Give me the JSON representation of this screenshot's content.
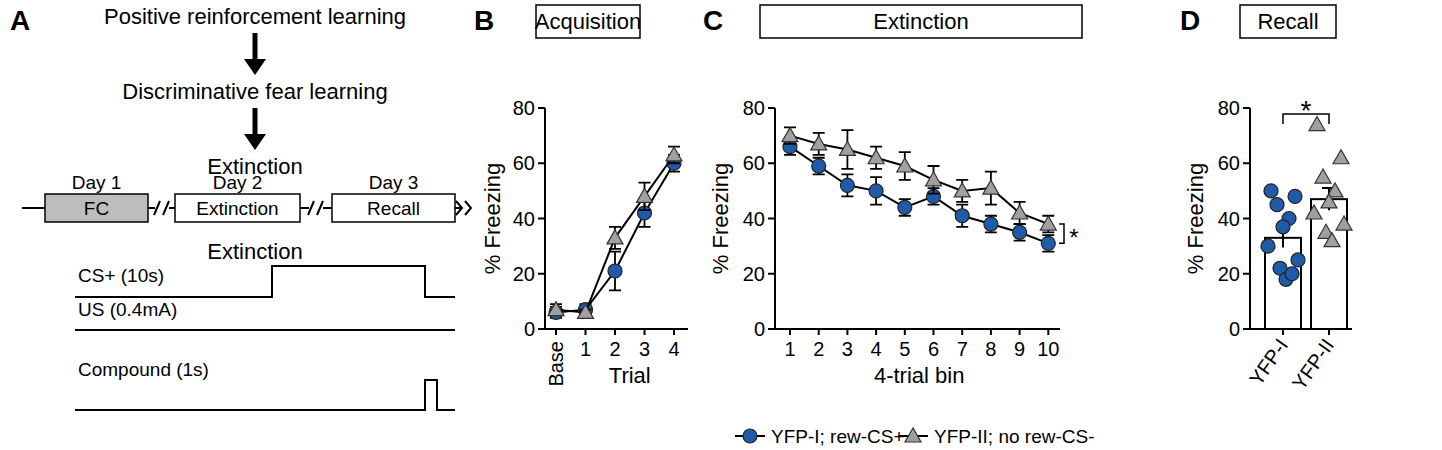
{
  "panel_labels": [
    "A",
    "B",
    "C",
    "D"
  ],
  "diagram": {
    "steps": [
      "Positive reinforcement learning",
      "Discriminative fear learning",
      "Extinction"
    ],
    "timeline": [
      {
        "day": "Day 1",
        "label": "FC"
      },
      {
        "day": "Day 2",
        "label": "Extinction"
      },
      {
        "day": "Day 3",
        "label": "Recall"
      }
    ],
    "protocol": {
      "title": "Extinction",
      "traces": [
        {
          "label": "CS+ (10s)"
        },
        {
          "label": "US (0.4mA)"
        },
        {
          "label": "Compound (1s)"
        }
      ]
    }
  },
  "chart_data": [
    {
      "type": "line",
      "title": "Acquisition",
      "x_label": "Trial",
      "y_label": "% Freezing",
      "categories": [
        "Base",
        "1",
        "2",
        "3",
        "4"
      ],
      "ylim": [
        0,
        80
      ],
      "yticks": [
        0,
        20,
        40,
        60,
        80
      ],
      "series": [
        {
          "color": "#1f5ba8",
          "marker": "circle",
          "values": [
            6,
            7,
            21,
            42,
            60
          ],
          "errors": [
            2,
            2,
            7,
            5,
            3
          ]
        },
        {
          "color": "#a0a0a0",
          "marker": "triangle",
          "values": [
            7,
            6,
            33,
            48,
            63
          ],
          "errors": [
            2,
            1,
            4,
            5,
            3
          ]
        }
      ]
    },
    {
      "type": "line",
      "title": "Extinction",
      "x_label": "4-trial bin",
      "y_label": "% Freezing",
      "categories": [
        "1",
        "2",
        "3",
        "4",
        "5",
        "6",
        "7",
        "8",
        "9",
        "10"
      ],
      "ylim": [
        0,
        80
      ],
      "yticks": [
        0,
        20,
        40,
        60,
        80
      ],
      "annotation": "*",
      "legend": "bottom",
      "series": [
        {
          "name": "YFP-I; rew-CS+",
          "color": "#1f5ba8",
          "marker": "circle",
          "values": [
            66,
            59,
            52,
            50,
            44,
            48,
            41,
            38,
            35,
            31
          ],
          "errors": [
            3,
            3,
            4,
            5,
            3,
            3,
            4,
            3,
            3,
            3
          ]
        },
        {
          "name": "YFP-II; no rew-CS-",
          "color": "#a0a0a0",
          "marker": "triangle",
          "values": [
            70,
            67,
            65,
            62,
            59,
            54,
            50,
            51,
            42,
            38
          ],
          "errors": [
            3,
            4,
            7,
            4,
            5,
            5,
            4,
            6,
            4,
            3
          ]
        }
      ]
    },
    {
      "type": "bar",
      "title": "Recall",
      "y_label": "% Freezing",
      "categories": [
        "YFP-I",
        "YFP-II"
      ],
      "ylim": [
        0,
        80
      ],
      "yticks": [
        0,
        20,
        40,
        60,
        80
      ],
      "annotation": "*",
      "series": [
        {
          "type": "bar",
          "color": "#ffffff",
          "values": [
            33,
            47
          ],
          "errors": [
            3.5,
            4
          ]
        },
        {
          "type": "scatter",
          "color": "#1f5ba8",
          "marker": "circle",
          "x": [
            "YFP-I",
            "YFP-I",
            "YFP-I",
            "YFP-I",
            "YFP-I",
            "YFP-I",
            "YFP-I",
            "YFP-I",
            "YFP-I",
            "YFP-I"
          ],
          "values": [
            50,
            48,
            45,
            40,
            37,
            30,
            25,
            22,
            18,
            20
          ]
        },
        {
          "type": "scatter",
          "color": "#a0a0a0",
          "marker": "triangle",
          "x": [
            "YFP-II",
            "YFP-II",
            "YFP-II",
            "YFP-II",
            "YFP-II",
            "YFP-II",
            "YFP-II",
            "YFP-II",
            "YFP-II"
          ],
          "values": [
            74,
            62,
            55,
            50,
            46,
            42,
            38,
            35,
            32
          ]
        }
      ]
    }
  ]
}
